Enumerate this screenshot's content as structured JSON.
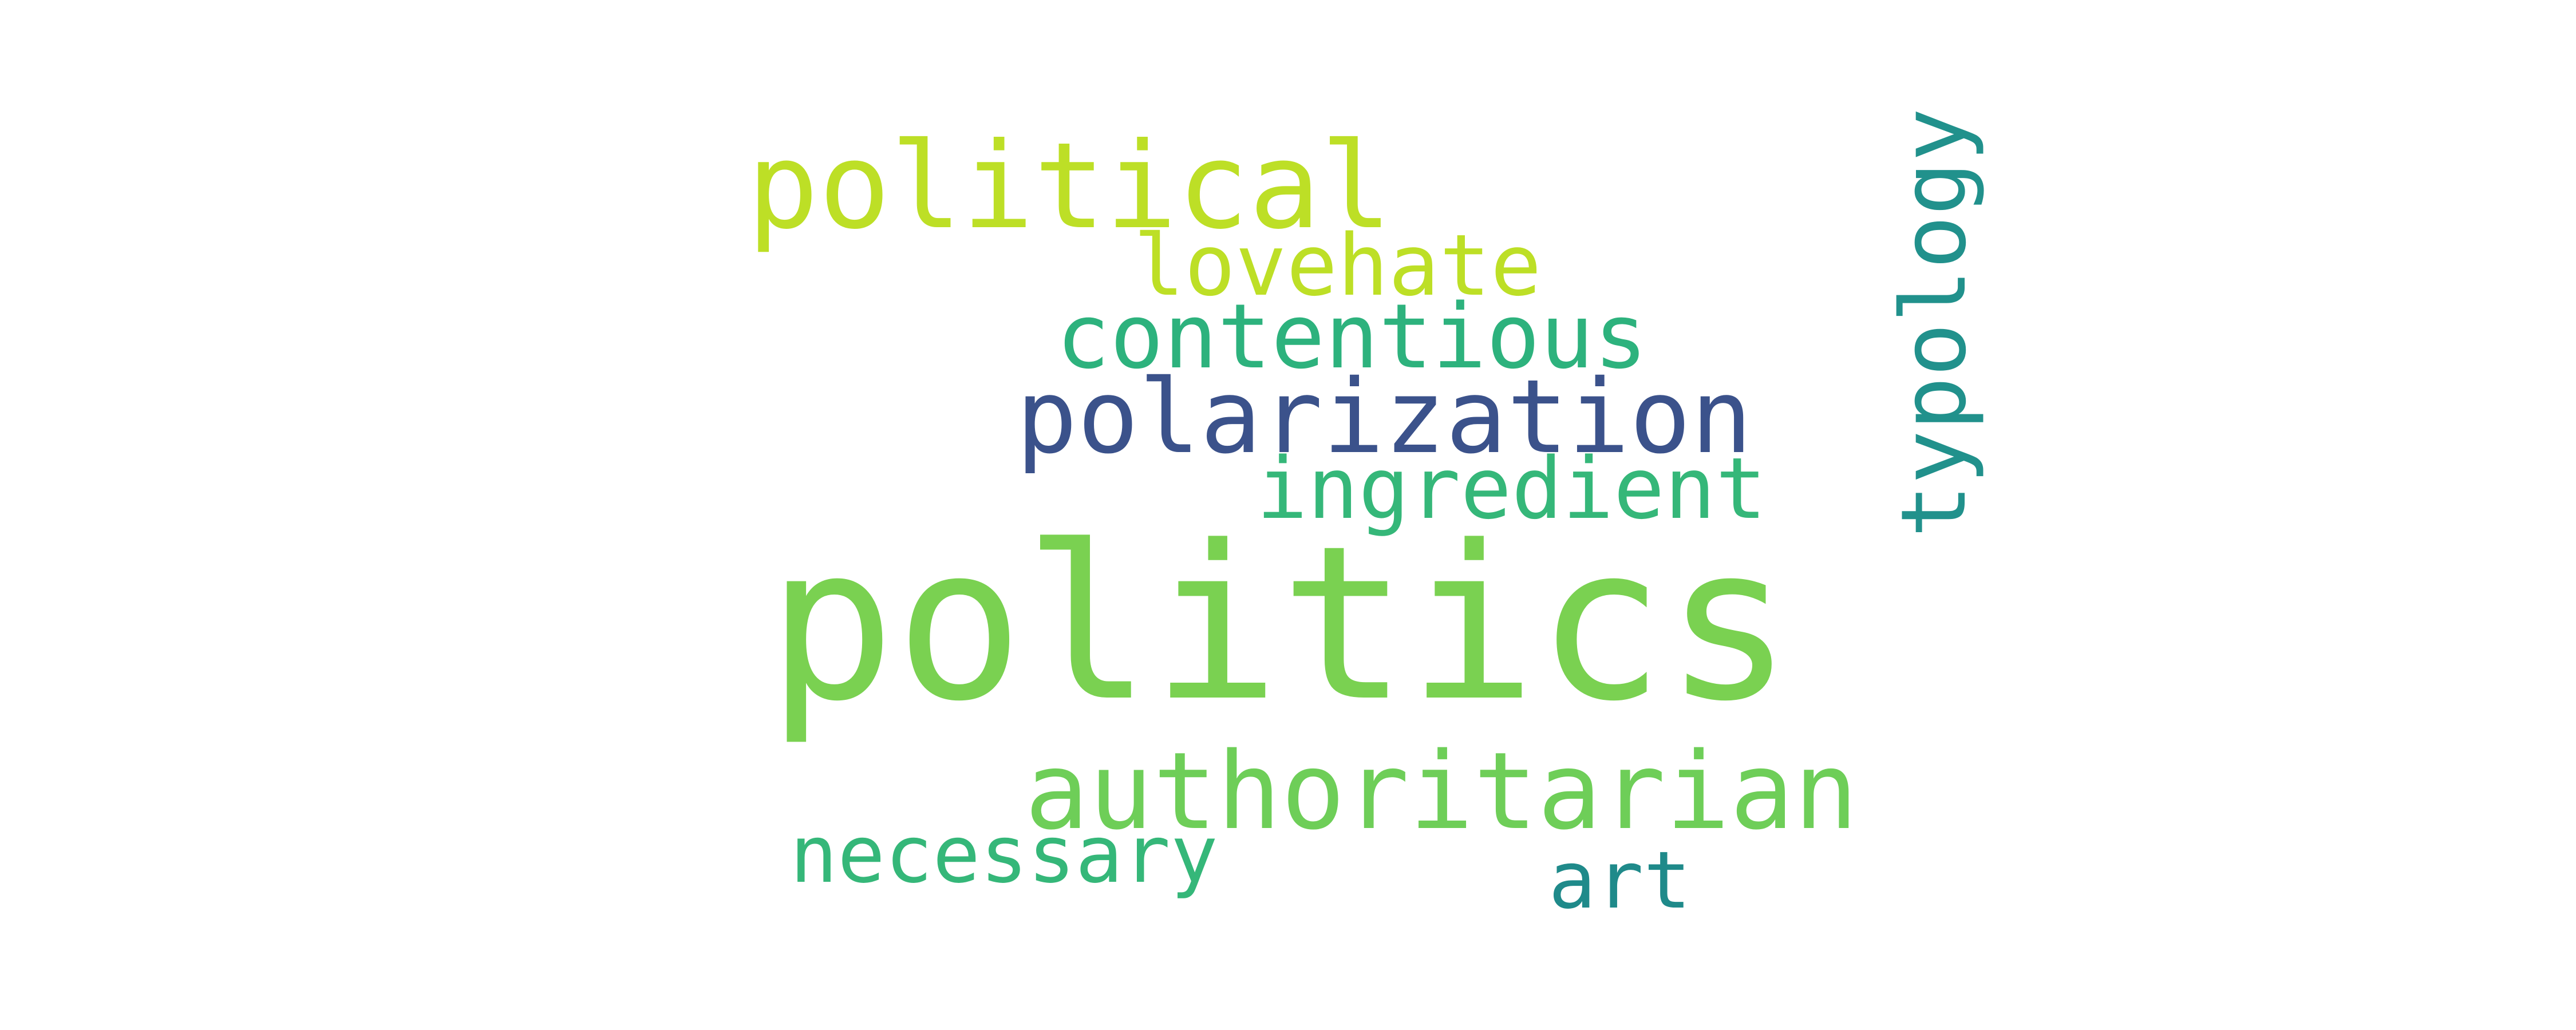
{
  "cloud": {
    "background": "#ffffff",
    "words": {
      "politics": {
        "text": "politics",
        "color": "#7ad151"
      },
      "political": {
        "text": "political",
        "color": "#bddf26"
      },
      "lovehate": {
        "text": "lovehate",
        "color": "#bddf26"
      },
      "contentious": {
        "text": "contentious",
        "color": "#2db27d"
      },
      "polarization": {
        "text": "polarization",
        "color": "#3b528b"
      },
      "ingredient": {
        "text": "ingredient",
        "color": "#35b779"
      },
      "typology": {
        "text": "typology",
        "color": "#21918c"
      },
      "authoritarian": {
        "text": "authoritarian",
        "color": "#6ece58"
      },
      "necessary": {
        "text": "necessary",
        "color": "#35b779"
      },
      "art": {
        "text": "art",
        "color": "#1f8a8a"
      }
    }
  }
}
